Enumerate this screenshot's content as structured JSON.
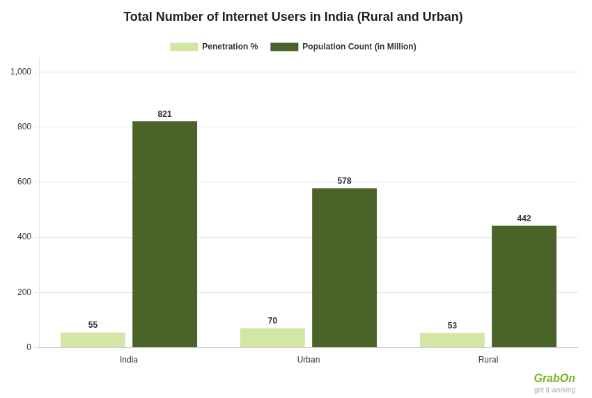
{
  "chart_data": {
    "type": "bar",
    "title": "Total Number of Internet Users in India (Rural and Urban)",
    "categories": [
      "India",
      "Urban",
      "Rural"
    ],
    "series": [
      {
        "name": "Penetration %",
        "color": "#d4e6a5",
        "values": [
          55,
          70,
          53
        ]
      },
      {
        "name": "Population Count (in Million)",
        "color": "#4a6329",
        "values": [
          821,
          578,
          442
        ]
      }
    ],
    "ylim": [
      0,
      1050
    ],
    "yticks": [
      0,
      200,
      400,
      600,
      800,
      {
        "value": 1000,
        "label": "1,000"
      }
    ],
    "grid": true,
    "legend": "top",
    "data_labels": true,
    "annotations": [
      {
        "text": "GrabOn",
        "color": "#7ab327"
      },
      {
        "text": "get it working",
        "color": "#aaaaaa"
      }
    ]
  }
}
